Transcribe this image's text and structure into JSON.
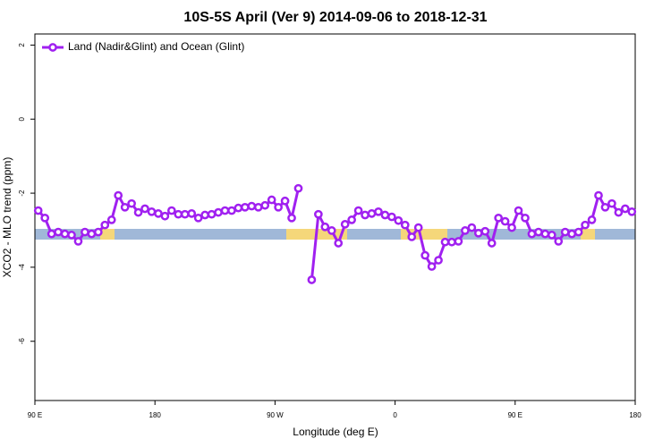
{
  "chart_data": {
    "type": "line",
    "title": "10S-5S April (Ver 9)   2014-09-06 to 2018-12-31",
    "xlabel": "Longitude (deg E)",
    "ylabel": "XCO2 - MLO trend (ppm)",
    "xlim": [
      90,
      540
    ],
    "ylim": [
      -7.6,
      2.3
    ],
    "xticks": [
      {
        "value": 90,
        "label": "90 E"
      },
      180,
      {
        "value": 270,
        "label": "90 W"
      },
      {
        "value": 360,
        "label": "0"
      },
      {
        "value": 450,
        "label": "90 E"
      },
      {
        "value": 540,
        "label": "180"
      }
    ],
    "yticks": [
      2,
      0,
      -2,
      -4,
      -6
    ],
    "legend": "top-left",
    "x": [
      92.5,
      97.5,
      102.5,
      107.5,
      112.5,
      117.5,
      122.5,
      127.5,
      132.5,
      137.5,
      142.5,
      147.5,
      152.5,
      157.5,
      162.5,
      167.5,
      172.5,
      177.5,
      182.5,
      187.5,
      192.5,
      197.5,
      202.5,
      207.5,
      212.5,
      217.5,
      222.5,
      227.5,
      232.5,
      237.5,
      242.5,
      247.5,
      252.5,
      257.5,
      262.5,
      267.5,
      272.5,
      277.5,
      282.5,
      287.5,
      292.5,
      297.5,
      302.5,
      307.5,
      312.5,
      317.5,
      322.5,
      327.5,
      332.5,
      337.5,
      342.5,
      347.5,
      352.5,
      357.5,
      362.5,
      367.5,
      372.5,
      377.5,
      382.5,
      387.5,
      392.5,
      397.5,
      402.5,
      407.5,
      412.5,
      417.5,
      422.5,
      427.5,
      432.5,
      437.5,
      442.5,
      447.5,
      452.5,
      457.5,
      462.5,
      467.5,
      472.5,
      477.5,
      482.5,
      487.5,
      492.5,
      497.5,
      502.5,
      507.5,
      512.5,
      517.5,
      522.5,
      527.5,
      532.5,
      537.5
    ],
    "series": [
      {
        "name": "Land (Nadir&Glint) and Ocean (Glint)",
        "color": "#a020f0",
        "values": [
          -2.47,
          -2.67,
          -3.1,
          -3.05,
          -3.1,
          -3.13,
          -3.3,
          -3.05,
          -3.1,
          -3.05,
          -2.86,
          -2.72,
          -2.06,
          -2.38,
          -2.28,
          -2.52,
          -2.42,
          -2.5,
          -2.55,
          -2.62,
          -2.47,
          -2.57,
          -2.57,
          -2.55,
          -2.67,
          -2.59,
          -2.57,
          -2.52,
          -2.47,
          -2.47,
          -2.4,
          -2.38,
          -2.35,
          -2.38,
          -2.33,
          -2.18,
          -2.38,
          -2.21,
          -2.67,
          -1.87,
          null,
          -4.34,
          -2.57,
          -2.91,
          -3.01,
          -3.35,
          -2.84,
          -2.72,
          -2.47,
          -2.59,
          -2.55,
          -2.5,
          -2.59,
          -2.64,
          -2.74,
          -2.86,
          -3.18,
          -2.93,
          -3.68,
          -3.98,
          -3.81,
          -3.32,
          -3.32,
          -3.3,
          -3.01,
          -2.93,
          -3.08,
          -3.03,
          -3.35,
          -2.67,
          -2.76,
          -2.93,
          -2.47,
          -2.67,
          -3.1,
          -3.05,
          -3.1,
          -3.13,
          -3.3,
          -3.05,
          -3.1,
          -3.05,
          -2.86,
          -2.72,
          -2.06,
          -2.38,
          -2.28,
          -2.52,
          -2.42,
          -2.5
        ]
      }
    ]
  }
}
